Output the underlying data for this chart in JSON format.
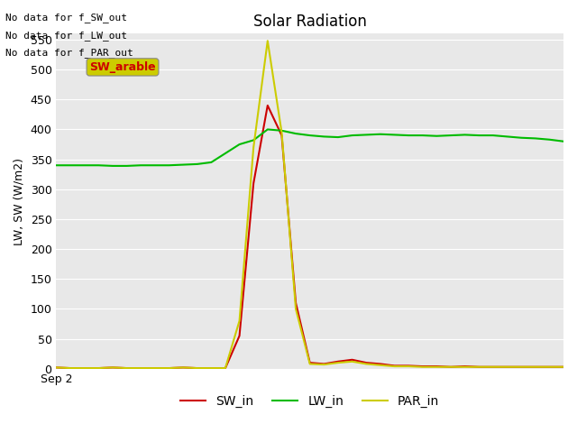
{
  "title": "Solar Radiation",
  "ylabel": "LW, SW (W/m2)",
  "xlabel": "Sep 2",
  "plot_bg_color": "#e8e8e8",
  "ylim": [
    0,
    560
  ],
  "yticks": [
    0,
    50,
    100,
    150,
    200,
    250,
    300,
    350,
    400,
    450,
    500,
    550
  ],
  "annotations": [
    "No data for f_SW_out",
    "No data for f_LW_out",
    "No data for f_PAR_out"
  ],
  "legend_label": "SW_arable",
  "legend_label_color": "#cc0000",
  "legend_label_bg": "#cccc00",
  "SW_in_color": "#cc0000",
  "LW_in_color": "#00bb00",
  "PAR_in_color": "#cccc00",
  "x": [
    0,
    1,
    2,
    3,
    4,
    5,
    6,
    7,
    8,
    9,
    10,
    11,
    12,
    13,
    14,
    15,
    16,
    17,
    18,
    19,
    20,
    21,
    22,
    23,
    24,
    25,
    26,
    27,
    28,
    29,
    30,
    31,
    32,
    33,
    34,
    35,
    36
  ],
  "SW_in": [
    2,
    1,
    1,
    1,
    2,
    1,
    1,
    1,
    1,
    2,
    1,
    1,
    1,
    55,
    310,
    440,
    390,
    110,
    10,
    8,
    12,
    15,
    10,
    8,
    5,
    5,
    4,
    4,
    3,
    4,
    3,
    3,
    3,
    3,
    3,
    3,
    3
  ],
  "LW_in": [
    340,
    340,
    340,
    340,
    339,
    339,
    340,
    340,
    340,
    341,
    342,
    345,
    360,
    375,
    382,
    400,
    398,
    393,
    390,
    388,
    387,
    390,
    391,
    392,
    391,
    390,
    390,
    389,
    390,
    391,
    390,
    390,
    388,
    386,
    385,
    383,
    380
  ],
  "PAR_in": [
    2,
    1,
    1,
    1,
    2,
    1,
    1,
    1,
    1,
    2,
    1,
    1,
    1,
    80,
    370,
    548,
    395,
    100,
    8,
    7,
    10,
    12,
    8,
    6,
    4,
    4,
    3,
    3,
    3,
    3,
    3,
    3,
    3,
    3,
    3,
    3,
    3
  ]
}
